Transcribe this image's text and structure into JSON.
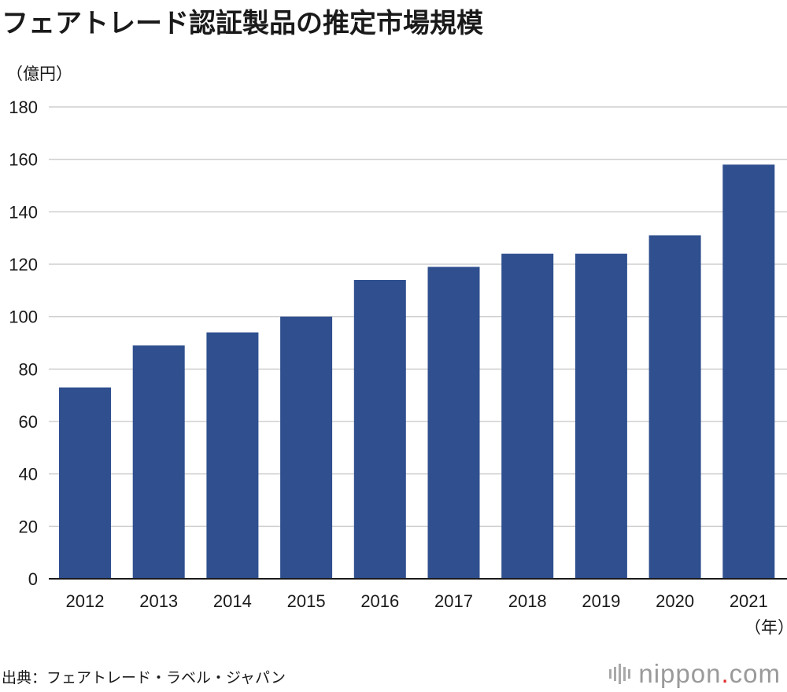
{
  "title": "フェアトレード認証製品の推定市場規模",
  "unit_label": "（億円）",
  "x_unit_label": "（年）",
  "source": "出典：フェアトレード・ラベル・ジャパン",
  "logo": {
    "name": "nippon",
    "dot": ".",
    "tld": "com"
  },
  "colors": {
    "bar": "#2f4f8f",
    "grid": "#cfcfcf",
    "axis": "#1a1a1a"
  },
  "chart_data": {
    "type": "bar",
    "title": "フェアトレード認証製品の推定市場規模",
    "xlabel": "（年）",
    "ylabel": "（億円）",
    "categories": [
      "2012",
      "2013",
      "2014",
      "2015",
      "2016",
      "2017",
      "2018",
      "2019",
      "2020",
      "2021"
    ],
    "values": [
      73,
      89,
      94,
      100,
      114,
      119,
      124,
      124,
      131,
      158
    ],
    "ylim": [
      0,
      180
    ],
    "yticks": [
      0,
      20,
      40,
      60,
      80,
      100,
      120,
      140,
      160,
      180
    ],
    "grid": true,
    "legend": "none"
  }
}
